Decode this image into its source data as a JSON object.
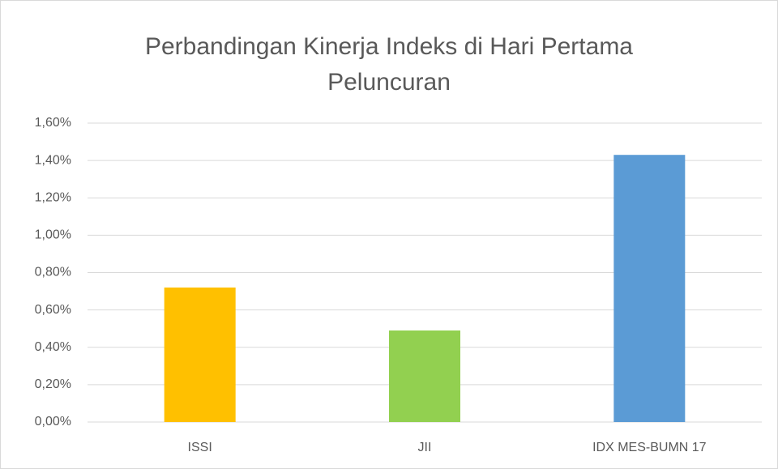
{
  "chart_data": {
    "type": "bar",
    "title": "Perbandingan Kinerja Indeks di Hari Pertama Peluncuran",
    "categories": [
      "ISSI",
      "JII",
      "IDX MES-BUMN 17"
    ],
    "values": [
      0.72,
      0.49,
      1.43
    ],
    "colors": [
      "#ffc000",
      "#92d050",
      "#5b9bd5"
    ],
    "ylim": [
      0,
      1.6
    ],
    "yticks": [
      {
        "value": 0,
        "label": "0,00%"
      },
      {
        "value": 0.2,
        "label": "0,20%"
      },
      {
        "value": 0.4,
        "label": "0,40%"
      },
      {
        "value": 0.6,
        "label": "0,60%"
      },
      {
        "value": 0.8,
        "label": "0,80%"
      },
      {
        "value": 1.0,
        "label": "1,00%"
      },
      {
        "value": 1.2,
        "label": "1,20%"
      },
      {
        "value": 1.4,
        "label": "1,40%"
      },
      {
        "value": 1.6,
        "label": "1,60%"
      }
    ],
    "grid": true
  }
}
